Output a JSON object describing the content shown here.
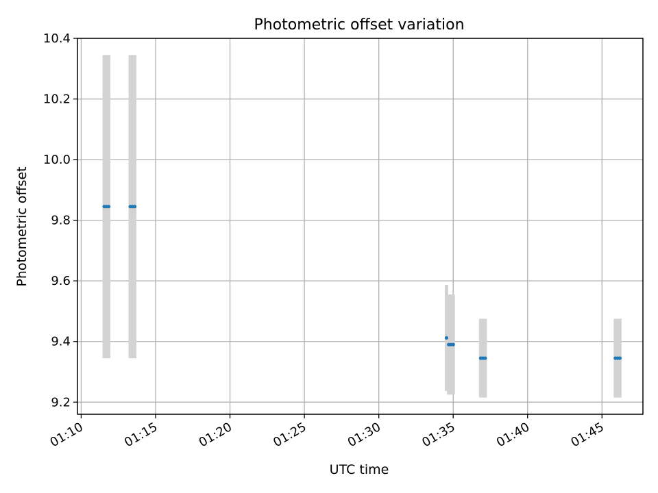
{
  "chart_data": {
    "type": "scatter",
    "title": "Photometric offset variation",
    "xlabel": "UTC time",
    "ylabel": "Photometric offset",
    "xlim": [
      "01:09:45",
      "01:47:45"
    ],
    "ylim": [
      9.16,
      10.4
    ],
    "x_ticks": [
      "01:10",
      "01:15",
      "01:20",
      "01:25",
      "01:30",
      "01:35",
      "01:40",
      "01:45"
    ],
    "y_ticks": [
      "9.2",
      "9.4",
      "9.6",
      "9.8",
      "10.0",
      "10.2",
      "10.4"
    ],
    "grid": true,
    "colors": {
      "points": "#1f77b4",
      "errorbars": "#d3d3d3",
      "grid": "#b0b0b0"
    },
    "series": [
      {
        "points": [
          {
            "x": "01:11:33",
            "y": 9.845,
            "yerr": 0.5
          },
          {
            "x": "01:11:42",
            "y": 9.845,
            "yerr": 0.5
          },
          {
            "x": "01:11:51",
            "y": 9.845,
            "yerr": 0.5
          },
          {
            "x": "01:13:18",
            "y": 9.845,
            "yerr": 0.5
          },
          {
            "x": "01:13:27",
            "y": 9.845,
            "yerr": 0.5
          },
          {
            "x": "01:13:36",
            "y": 9.845,
            "yerr": 0.5
          },
          {
            "x": "01:34:33",
            "y": 9.412,
            "yerr": 0.175
          },
          {
            "x": "01:34:42",
            "y": 9.39,
            "yerr": 0.165
          },
          {
            "x": "01:34:51",
            "y": 9.39,
            "yerr": 0.165
          },
          {
            "x": "01:35:00",
            "y": 9.39,
            "yerr": 0.165
          },
          {
            "x": "01:36:51",
            "y": 9.345,
            "yerr": 0.13
          },
          {
            "x": "01:37:00",
            "y": 9.345,
            "yerr": 0.13
          },
          {
            "x": "01:37:09",
            "y": 9.345,
            "yerr": 0.13
          },
          {
            "x": "01:45:54",
            "y": 9.345,
            "yerr": 0.13
          },
          {
            "x": "01:46:03",
            "y": 9.345,
            "yerr": 0.13
          },
          {
            "x": "01:46:12",
            "y": 9.345,
            "yerr": 0.13
          }
        ]
      }
    ]
  }
}
